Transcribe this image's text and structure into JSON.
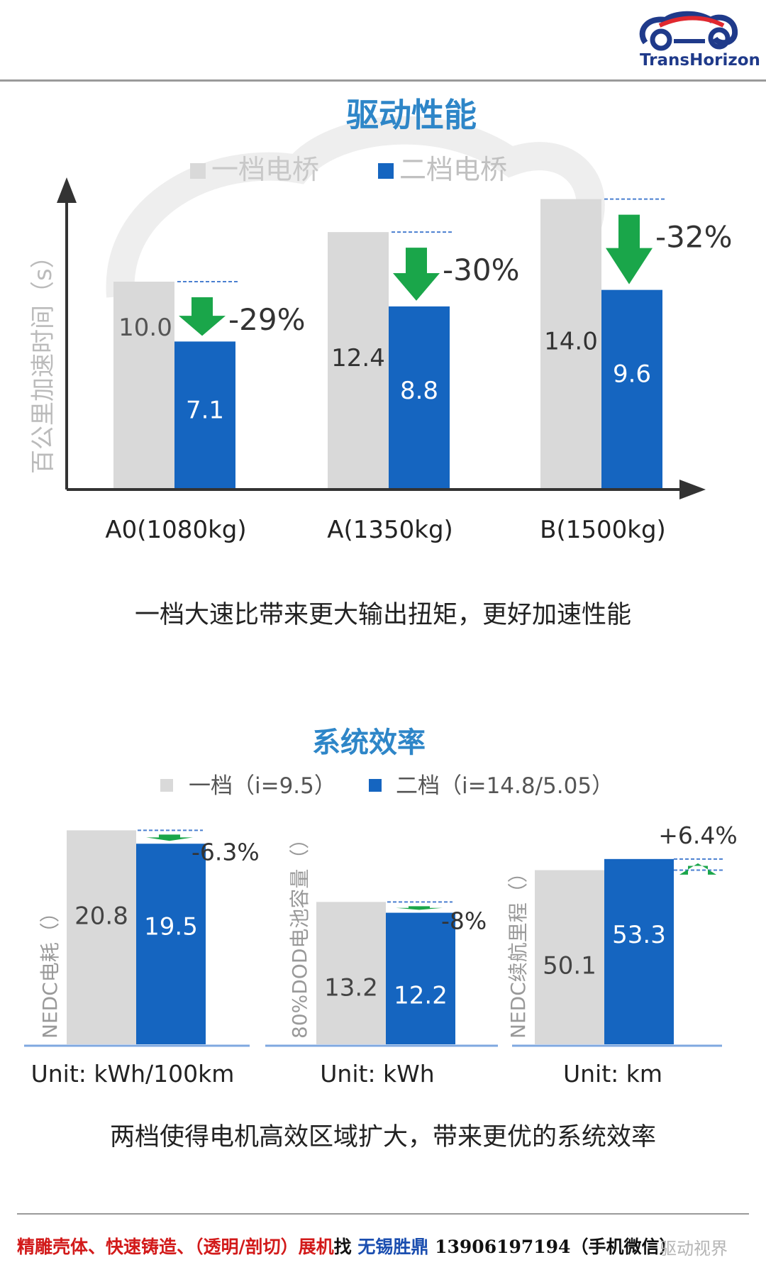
{
  "header": {
    "logo_text": "TransHorizon",
    "colors": {
      "logo_navy": "#1f3a8a",
      "logo_red": "#e0282f",
      "rule": "#9a9a9a"
    }
  },
  "chart1_caption": "一档大速比带来更大输出扭矩，更好加速性能",
  "chart2_caption": "两档使得电机高效区域扩大，带来更优的系统效率",
  "footer": {
    "part1": "精雕壳体、快速铸造、（透明/剖切）展机",
    "part2": "找",
    "part3": "无锡胜鼎",
    "part4": "13906197194（手机微信）",
    "watermark": "驱动视界"
  },
  "chart_data": [
    {
      "type": "bar",
      "title": "驱动性能",
      "legend": [
        "一档电桥",
        "二档电桥"
      ],
      "legend_position": "top-left",
      "ylabel": "百公里加速时间（s）",
      "categories": [
        "A0(1080kg)",
        "A(1350kg)",
        "B(1500kg)"
      ],
      "series": [
        {
          "name": "一档电桥",
          "values": [
            10.0,
            12.4,
            14.0
          ],
          "color": "#d9d9d9"
        },
        {
          "name": "二档电桥",
          "values": [
            7.1,
            8.8,
            9.6
          ],
          "color": "#1565c0"
        }
      ],
      "value_labels": {
        "gray": [
          "10.0",
          "12.4",
          "14.0"
        ],
        "blue": [
          "7.1",
          "8.8",
          "9.6"
        ]
      },
      "annotations": [
        "-29%",
        "-30%",
        "-32%"
      ],
      "ylim": [
        0,
        16
      ]
    },
    {
      "type": "bar",
      "title": "系统效率",
      "legend": [
        "一档（i=9.5）",
        "二档（i=14.8/5.05）"
      ],
      "legend_position": "top",
      "panels": [
        {
          "ylabel": "NEDC电耗（）",
          "unit": "Unit: kWh/100km",
          "values": [
            20.8,
            19.5
          ],
          "value_labels": [
            "20.8",
            "19.5"
          ],
          "annotation": "-6.3%",
          "direction": "down",
          "ylim": [
            0,
            22
          ]
        },
        {
          "ylabel": "80%DOD电池容量（）",
          "unit": "Unit: kWh",
          "values": [
            13.2,
            12.2
          ],
          "value_labels": [
            "13.2",
            "12.2"
          ],
          "annotation": "-8%",
          "direction": "down",
          "ylim": [
            0,
            15
          ]
        },
        {
          "ylabel": "NEDC续航里程（）",
          "unit": "Unit: km",
          "values": [
            50.1,
            53.3
          ],
          "value_labels": [
            "50.1",
            "53.3"
          ],
          "annotation": "+6.4%",
          "direction": "up",
          "ylim": [
            0,
            61
          ]
        }
      ],
      "colors": {
        "gear1": "#d9d9d9",
        "gear2": "#1565c0",
        "arrow": "#1aa64a",
        "title": "#2e86c8"
      }
    }
  ]
}
